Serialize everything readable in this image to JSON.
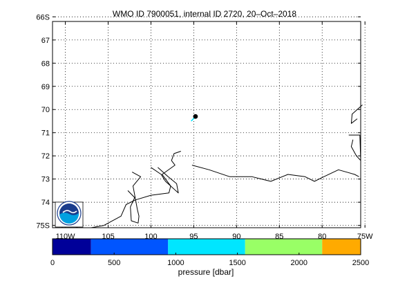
{
  "chart_data": [
    {
      "type": "map",
      "title": "WMO ID 7900051, internal ID 2720, 20–Oct–2018",
      "lon_ticks": [
        -110,
        -105,
        -100,
        -95,
        -90,
        -85,
        -80,
        -75
      ],
      "lon_tick_labels": [
        "110W",
        "105",
        "100",
        "95",
        "90",
        "85",
        "80",
        "75W"
      ],
      "lat_ticks": [
        -66,
        -67,
        -68,
        -69,
        -70,
        -71,
        -72,
        -73,
        -74,
        -75
      ],
      "lat_tick_labels": [
        "66S",
        "67",
        "68",
        "69",
        "70",
        "71",
        "72",
        "73",
        "74",
        "75S"
      ],
      "xlim": [
        -111.5,
        -75.5
      ],
      "ylim": [
        -75.1,
        -66.2
      ],
      "grid": true,
      "float_track": [
        {
          "lon": -95.3,
          "lat": -70.5
        },
        {
          "lon": -94.8,
          "lat": -70.3
        }
      ],
      "float_position": {
        "lon": -94.8,
        "lat": -70.3
      },
      "coastline_segments": [
        [
          [
            -75.3,
            -69.8
          ],
          [
            -75.6,
            -69.9
          ],
          [
            -76.5,
            -70.2
          ],
          [
            -76.6,
            -70.6
          ],
          [
            -75.9,
            -70.4
          ]
        ],
        [
          [
            -76.9,
            -71.1
          ],
          [
            -75.6,
            -71.1
          ],
          [
            -75.5,
            -72.2
          ],
          [
            -76.0,
            -72.0
          ],
          [
            -76.6,
            -71.6
          ],
          [
            -76.4,
            -71.3
          ]
        ],
        [
          [
            -96.5,
            -71.8
          ],
          [
            -97.3,
            -71.9
          ],
          [
            -97.6,
            -72.2
          ],
          [
            -97.2,
            -72.4
          ],
          [
            -98.7,
            -72.8
          ],
          [
            -97.7,
            -73.3
          ],
          [
            -97.9,
            -73.6
          ],
          [
            -100.0,
            -73.7
          ],
          [
            -101.8,
            -73.9
          ],
          [
            -102.9,
            -74.1
          ],
          [
            -103.5,
            -74.6
          ],
          [
            -105.5,
            -75.0
          ],
          [
            -107.0,
            -75.1
          ]
        ],
        [
          [
            -100.0,
            -72.5
          ],
          [
            -98.8,
            -72.8
          ],
          [
            -98.3,
            -73.1
          ],
          [
            -96.8,
            -73.6
          ],
          [
            -97.0,
            -73.2
          ],
          [
            -98.0,
            -72.9
          ],
          [
            -99.2,
            -72.5
          ]
        ],
        [
          [
            -95.2,
            -72.4
          ],
          [
            -93.2,
            -72.6
          ],
          [
            -90.8,
            -72.9
          ],
          [
            -88.2,
            -72.9
          ],
          [
            -86.0,
            -73.1
          ],
          [
            -84.0,
            -72.8
          ],
          [
            -82.0,
            -72.9
          ],
          [
            -80.9,
            -73.1
          ],
          [
            -79.8,
            -72.9
          ],
          [
            -78.1,
            -72.6
          ],
          [
            -76.2,
            -72.8
          ],
          [
            -75.7,
            -72.9
          ]
        ],
        [
          [
            -102.2,
            -72.7
          ],
          [
            -101.2,
            -72.9
          ],
          [
            -102.1,
            -73.3
          ],
          [
            -101.6,
            -74.3
          ],
          [
            -101.4,
            -74.6
          ],
          [
            -101.5,
            -74.9
          ],
          [
            -102.3,
            -74.8
          ],
          [
            -102.4,
            -74.2
          ],
          [
            -101.9,
            -73.8
          ],
          [
            -102.7,
            -73.5
          ]
        ],
        [
          [
            -111.2,
            -74.1
          ],
          [
            -110.2,
            -74.0
          ],
          [
            -110.0,
            -74.5
          ],
          [
            -109.2,
            -75.0
          ],
          [
            -108.5,
            -75.1
          ],
          [
            -109.7,
            -74.8
          ],
          [
            -110.4,
            -74.5
          ],
          [
            -111.0,
            -74.9
          ],
          [
            -110.3,
            -75.1
          ]
        ]
      ],
      "colorbar": {
        "label": "pressure [dbar]",
        "range": [
          0,
          2500
        ],
        "tick_values": [
          0,
          500,
          1000,
          1500,
          2000,
          2500
        ],
        "tick_labels": [
          "0",
          "500",
          "1000",
          "1500",
          "2000",
          "2500"
        ],
        "bins": [
          {
            "from": 0,
            "to": 312.5,
            "color": "#000099"
          },
          {
            "from": 312.5,
            "to": 937.5,
            "color": "#0055ff"
          },
          {
            "from": 937.5,
            "to": 1562.5,
            "color": "#00e6ff"
          },
          {
            "from": 1562.5,
            "to": 2187.5,
            "color": "#99ff66"
          },
          {
            "from": 2187.5,
            "to": 2500,
            "color": "#ffaa00"
          }
        ]
      },
      "colors": {
        "track": "#00e6ff",
        "float_marker": "#000000",
        "coastline": "#000000",
        "grid": "#000000"
      }
    }
  ],
  "logo": {
    "text": "NOAA",
    "colors": {
      "ring": "#ffffff",
      "sky": "#1a3c8c",
      "sea": "#00a0e0",
      "bird": "#ffffff"
    }
  }
}
